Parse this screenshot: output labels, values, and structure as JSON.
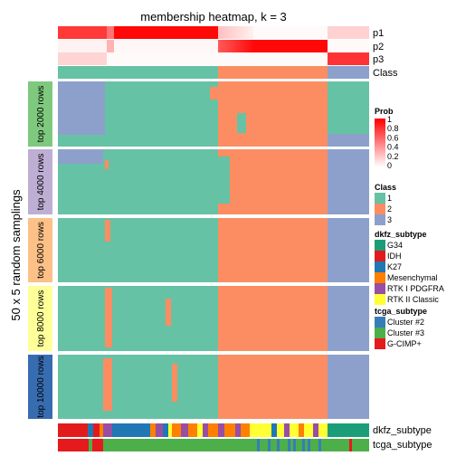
{
  "chart_data": {
    "type": "heatmap",
    "title": "membership heatmap, k = 3",
    "ylabel": "50 x 5 random samplings",
    "colors": {
      "class": {
        "1": "#66C2A5",
        "2": "#FC8D62",
        "3": "#8DA0CB"
      },
      "prob_low": "#FFFFFF",
      "prob_high": "#FF0000",
      "row_groups": [
        "#7FC97F",
        "#BEAED4",
        "#FDC086",
        "#FFFF99",
        "#386CB0"
      ],
      "dkfz": {
        "G34": "#1B9E77",
        "IDH": "#E31A1C",
        "K27": "#1F78B4",
        "Mesenchymal": "#FF7F00",
        "RTK I PDGFRA": "#984EA3",
        "RTK II Classic": "#FFFF33"
      },
      "tcga": {
        "Cluster #2": "#377EB8",
        "Cluster #3": "#4DAF4A",
        "G-CIMP+": "#E41A1C"
      }
    },
    "top_track_labels": [
      "p1",
      "p2",
      "p3",
      "Class"
    ],
    "bottom_track_labels": [
      "dkfz_subtype",
      "tcga_subtype"
    ],
    "row_groups": [
      {
        "label": "top 2000 rows"
      },
      {
        "label": "top 4000 rows"
      },
      {
        "label": "top 6000 rows"
      },
      {
        "label": "top 8000 rows"
      },
      {
        "label": "top 10000 rows"
      }
    ],
    "legends": {
      "prob": {
        "title": "Prob",
        "ticks": [
          "1",
          "0.8",
          "0.6",
          "0.4",
          "0.2",
          "0"
        ]
      },
      "class": {
        "title": "Class",
        "entries": [
          "1",
          "2",
          "3"
        ]
      },
      "dkfz": {
        "title": "dkfz_subtype",
        "entries": [
          "G34",
          "IDH",
          "K27",
          "Mesenchymal",
          "RTK I PDGFRA",
          "RTK II Classic"
        ]
      },
      "tcga": {
        "title": "tcga_subtype",
        "entries": [
          "Cluster #2",
          "Cluster #3",
          "G-CIMP+"
        ]
      }
    }
  }
}
